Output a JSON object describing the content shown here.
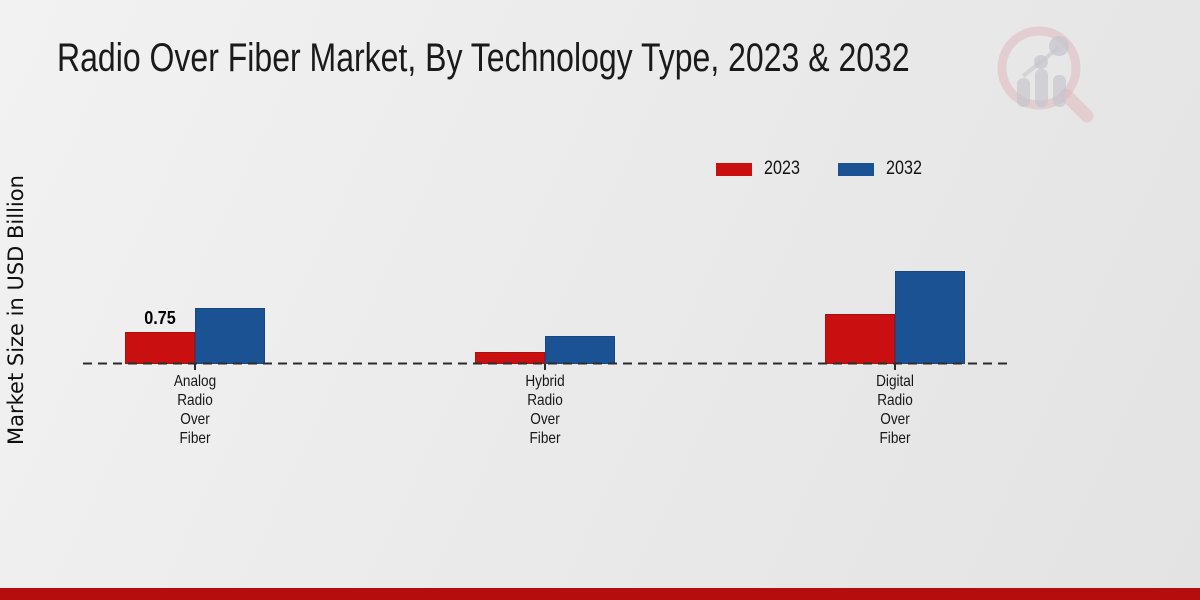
{
  "page": {
    "title": "Radio Over Fiber Market, By Technology Type, 2023 & 2032"
  },
  "watermark": {
    "icon": "magnifier-growth-chart-logo"
  },
  "chart_data": {
    "type": "bar",
    "title": "Radio Over Fiber Market, By Technology Type, 2023 & 2032",
    "xlabel": "",
    "ylabel": "Market Size in USD Billion",
    "categories": [
      "Analog Radio Over Fiber",
      "Hybrid Radio Over Fiber",
      "Digital Radio Over Fiber"
    ],
    "series": [
      {
        "name": "2023",
        "color": "#c90f0f",
        "values": [
          0.75,
          0.28,
          1.17
        ]
      },
      {
        "name": "2032",
        "color": "#1b5293",
        "values": [
          1.31,
          0.66,
          2.18
        ]
      }
    ],
    "data_labels": [
      {
        "series_index": 0,
        "category_index": 0,
        "text": "0.75"
      }
    ],
    "baseline_value": 0,
    "ylim": [
      0,
      2.5
    ],
    "grid": false,
    "legend_position": "upper-right",
    "baseline_style": "dashed",
    "baseline_color": "#2b2b2b",
    "footer_bar_color": "#b50d0d"
  }
}
